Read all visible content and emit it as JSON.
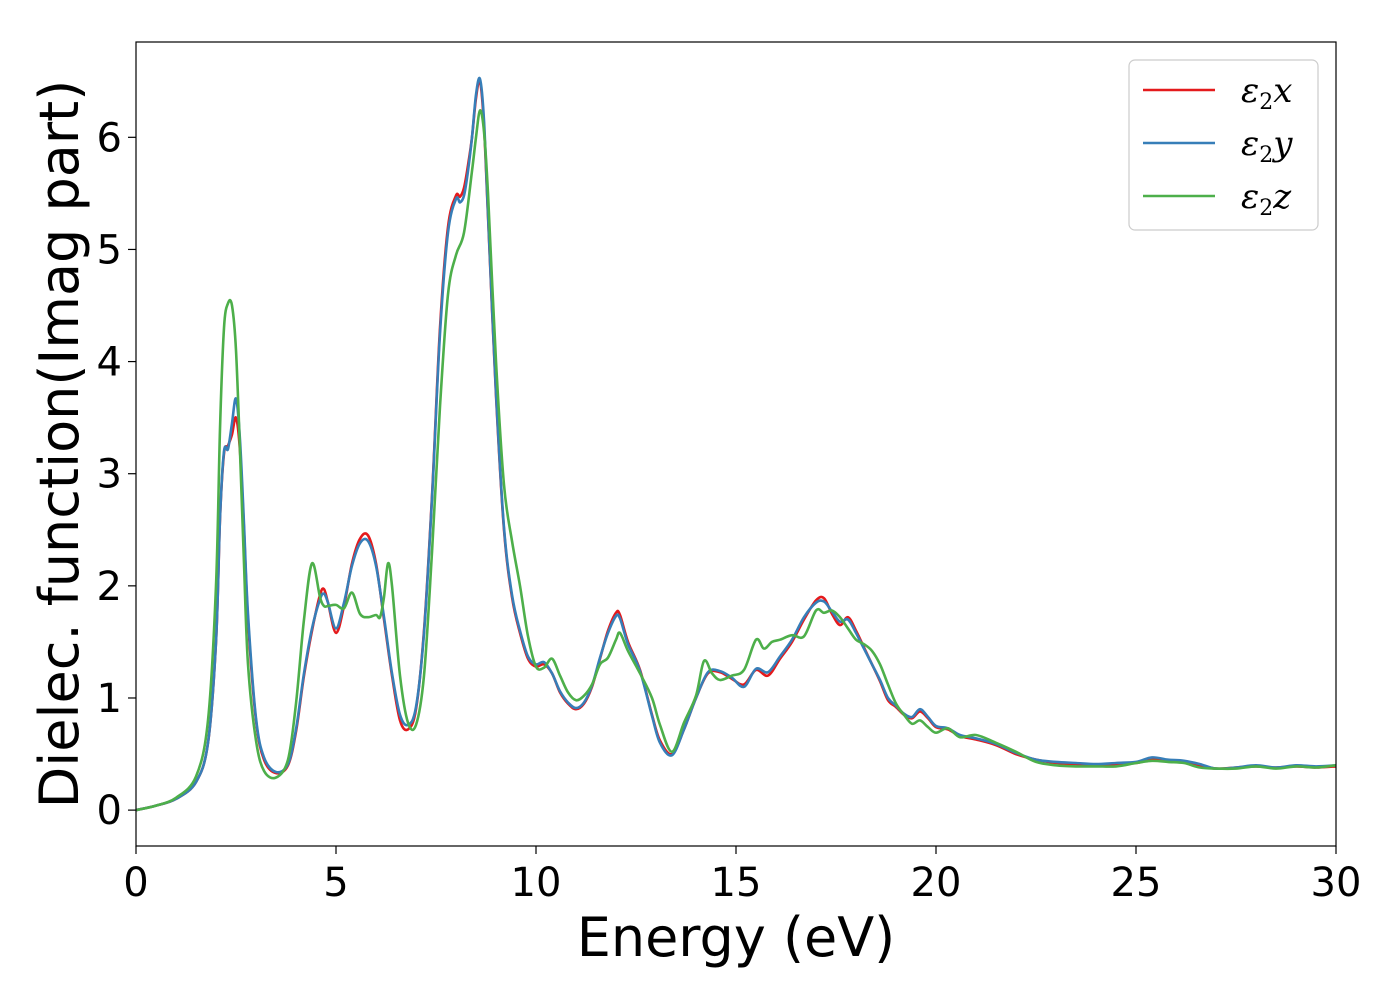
{
  "chart_data": {
    "type": "line",
    "title": "",
    "xlabel": "Energy (eV)",
    "ylabel": "Dielec. function(Imag part)",
    "xlim": [
      0,
      30
    ],
    "ylim": [
      -0.32,
      6.85
    ],
    "xticks": [
      0,
      5,
      10,
      15,
      20,
      25,
      30
    ],
    "yticks": [
      0,
      1,
      2,
      3,
      4,
      5,
      6
    ],
    "grid": false,
    "legend_position": "top-right",
    "series": [
      {
        "name": "ε₂x",
        "legend": {
          "base": "ε",
          "sub": "2",
          "suffix": "x"
        },
        "color": "#e41a1c",
        "x": [
          0,
          0.5,
          1.0,
          1.5,
          1.8,
          2.0,
          2.1,
          2.2,
          2.3,
          2.4,
          2.5,
          2.6,
          2.7,
          2.8,
          3.0,
          3.2,
          3.5,
          3.8,
          4.0,
          4.2,
          4.4,
          4.6,
          4.7,
          4.8,
          5.0,
          5.2,
          5.4,
          5.6,
          5.8,
          6.0,
          6.2,
          6.4,
          6.6,
          6.8,
          7.0,
          7.2,
          7.4,
          7.6,
          7.8,
          8.0,
          8.1,
          8.2,
          8.3,
          8.4,
          8.5,
          8.6,
          8.7,
          8.8,
          9.0,
          9.2,
          9.4,
          9.6,
          9.8,
          10.0,
          10.2,
          10.4,
          10.6,
          10.8,
          11.0,
          11.2,
          11.4,
          11.6,
          11.8,
          12.0,
          12.1,
          12.3,
          12.6,
          12.9,
          13.1,
          13.4,
          13.7,
          14.0,
          14.3,
          14.6,
          14.9,
          15.2,
          15.5,
          15.8,
          16.1,
          16.4,
          16.7,
          17.0,
          17.2,
          17.4,
          17.6,
          17.8,
          18.0,
          18.2,
          18.4,
          18.6,
          18.8,
          19.0,
          19.2,
          19.4,
          19.6,
          19.8,
          20.0,
          20.3,
          20.6,
          21.0,
          21.5,
          22.0,
          22.5,
          23.0,
          23.5,
          24.0,
          24.5,
          25.0,
          25.4,
          25.8,
          26.2,
          26.6,
          27.0,
          27.5,
          28.0,
          28.5,
          29.0,
          29.5,
          30.0
        ],
        "y": [
          0,
          0.04,
          0.1,
          0.25,
          0.6,
          1.5,
          2.6,
          3.18,
          3.25,
          3.35,
          3.5,
          3.2,
          2.5,
          1.7,
          0.8,
          0.45,
          0.33,
          0.4,
          0.7,
          1.2,
          1.6,
          1.92,
          1.97,
          1.85,
          1.58,
          1.82,
          2.2,
          2.42,
          2.45,
          2.2,
          1.7,
          1.2,
          0.8,
          0.72,
          0.9,
          1.6,
          2.8,
          4.3,
          5.2,
          5.48,
          5.47,
          5.55,
          5.75,
          6.0,
          6.35,
          6.5,
          6.1,
          5.3,
          3.7,
          2.5,
          1.9,
          1.58,
          1.35,
          1.28,
          1.3,
          1.22,
          1.05,
          0.95,
          0.9,
          0.95,
          1.1,
          1.35,
          1.6,
          1.76,
          1.74,
          1.5,
          1.25,
          0.85,
          0.62,
          0.5,
          0.72,
          1.0,
          1.22,
          1.23,
          1.17,
          1.12,
          1.25,
          1.2,
          1.35,
          1.5,
          1.7,
          1.87,
          1.89,
          1.75,
          1.65,
          1.72,
          1.6,
          1.45,
          1.3,
          1.15,
          0.98,
          0.92,
          0.85,
          0.82,
          0.88,
          0.82,
          0.74,
          0.72,
          0.66,
          0.63,
          0.58,
          0.5,
          0.45,
          0.42,
          0.41,
          0.4,
          0.41,
          0.42,
          0.45,
          0.44,
          0.43,
          0.4,
          0.37,
          0.38,
          0.39,
          0.38,
          0.39,
          0.38,
          0.39
        ]
      },
      {
        "name": "ε₂y",
        "legend": {
          "base": "ε",
          "sub": "2",
          "suffix": "y"
        },
        "color": "#377eb8",
        "x": [
          0,
          0.5,
          1.0,
          1.5,
          1.8,
          2.0,
          2.1,
          2.2,
          2.3,
          2.4,
          2.5,
          2.6,
          2.7,
          2.8,
          3.0,
          3.2,
          3.5,
          3.8,
          4.0,
          4.2,
          4.4,
          4.6,
          4.7,
          4.8,
          5.0,
          5.2,
          5.4,
          5.6,
          5.8,
          6.0,
          6.2,
          6.4,
          6.6,
          6.8,
          7.0,
          7.2,
          7.4,
          7.6,
          7.8,
          8.0,
          8.1,
          8.2,
          8.3,
          8.4,
          8.5,
          8.6,
          8.7,
          8.8,
          9.0,
          9.2,
          9.4,
          9.6,
          9.8,
          10.0,
          10.2,
          10.4,
          10.6,
          10.8,
          11.0,
          11.2,
          11.4,
          11.6,
          11.8,
          12.0,
          12.1,
          12.3,
          12.6,
          12.9,
          13.1,
          13.4,
          13.7,
          14.0,
          14.3,
          14.6,
          14.9,
          15.2,
          15.5,
          15.8,
          16.1,
          16.4,
          16.7,
          17.0,
          17.2,
          17.4,
          17.6,
          17.8,
          18.0,
          18.2,
          18.4,
          18.6,
          18.8,
          19.0,
          19.2,
          19.4,
          19.6,
          19.8,
          20.0,
          20.3,
          20.6,
          21.0,
          21.5,
          22.0,
          22.5,
          23.0,
          23.5,
          24.0,
          24.5,
          25.0,
          25.4,
          25.8,
          26.2,
          26.6,
          27.0,
          27.5,
          28.0,
          28.5,
          29.0,
          29.5,
          30.0
        ],
        "y": [
          0,
          0.04,
          0.1,
          0.25,
          0.6,
          1.5,
          2.6,
          3.2,
          3.22,
          3.45,
          3.67,
          3.3,
          2.55,
          1.75,
          0.82,
          0.47,
          0.34,
          0.41,
          0.72,
          1.22,
          1.62,
          1.88,
          1.93,
          1.85,
          1.62,
          1.85,
          2.18,
          2.38,
          2.4,
          2.18,
          1.72,
          1.22,
          0.85,
          0.76,
          0.92,
          1.58,
          2.78,
          4.25,
          5.15,
          5.45,
          5.42,
          5.48,
          5.7,
          6.0,
          6.38,
          6.52,
          6.15,
          5.32,
          3.72,
          2.52,
          1.92,
          1.6,
          1.37,
          1.3,
          1.32,
          1.22,
          1.06,
          0.96,
          0.91,
          0.96,
          1.11,
          1.36,
          1.58,
          1.73,
          1.71,
          1.48,
          1.24,
          0.84,
          0.6,
          0.49,
          0.72,
          1.0,
          1.23,
          1.24,
          1.18,
          1.1,
          1.26,
          1.23,
          1.37,
          1.52,
          1.72,
          1.85,
          1.86,
          1.77,
          1.68,
          1.7,
          1.58,
          1.44,
          1.3,
          1.16,
          1.0,
          0.93,
          0.86,
          0.83,
          0.9,
          0.83,
          0.75,
          0.73,
          0.67,
          0.64,
          0.59,
          0.51,
          0.45,
          0.43,
          0.42,
          0.41,
          0.42,
          0.43,
          0.47,
          0.45,
          0.44,
          0.41,
          0.37,
          0.38,
          0.4,
          0.38,
          0.4,
          0.39,
          0.4
        ]
      },
      {
        "name": "ε₂z",
        "legend": {
          "base": "ε",
          "sub": "2",
          "suffix": "z"
        },
        "color": "#4daf4a",
        "x": [
          0,
          0.5,
          1.0,
          1.5,
          1.8,
          2.0,
          2.1,
          2.2,
          2.3,
          2.4,
          2.5,
          2.6,
          2.7,
          2.8,
          3.0,
          3.2,
          3.5,
          3.8,
          4.0,
          4.2,
          4.4,
          4.6,
          4.7,
          4.8,
          5.0,
          5.2,
          5.4,
          5.6,
          5.8,
          6.0,
          6.1,
          6.2,
          6.3,
          6.4,
          6.6,
          6.8,
          7.0,
          7.2,
          7.4,
          7.6,
          7.8,
          8.0,
          8.2,
          8.4,
          8.5,
          8.6,
          8.7,
          8.8,
          9.0,
          9.2,
          9.4,
          9.6,
          9.8,
          10.0,
          10.2,
          10.4,
          10.6,
          10.8,
          11.0,
          11.2,
          11.4,
          11.6,
          11.8,
          12.0,
          12.1,
          12.3,
          12.6,
          12.9,
          13.1,
          13.4,
          13.7,
          14.0,
          14.2,
          14.4,
          14.6,
          14.9,
          15.2,
          15.5,
          15.7,
          15.9,
          16.1,
          16.4,
          16.7,
          17.0,
          17.2,
          17.4,
          17.6,
          17.8,
          18.0,
          18.2,
          18.4,
          18.6,
          18.8,
          19.0,
          19.2,
          19.4,
          19.6,
          19.8,
          20.0,
          20.3,
          20.6,
          21.0,
          21.5,
          22.0,
          22.5,
          23.0,
          23.5,
          24.0,
          24.5,
          25.0,
          25.4,
          25.8,
          26.2,
          26.6,
          27.0,
          27.5,
          28.0,
          28.5,
          29.0,
          29.5,
          30.0
        ],
        "y": [
          0,
          0.04,
          0.11,
          0.3,
          0.8,
          2.0,
          3.4,
          4.3,
          4.52,
          4.5,
          4.1,
          3.2,
          2.2,
          1.3,
          0.62,
          0.35,
          0.29,
          0.45,
          0.95,
          1.7,
          2.2,
          1.9,
          1.82,
          1.82,
          1.83,
          1.8,
          1.94,
          1.75,
          1.72,
          1.74,
          1.72,
          1.9,
          2.2,
          2.0,
          1.2,
          0.78,
          0.76,
          1.2,
          2.3,
          3.6,
          4.6,
          4.95,
          5.15,
          5.7,
          6.0,
          6.24,
          6.05,
          5.5,
          4.0,
          2.9,
          2.4,
          2.0,
          1.55,
          1.28,
          1.27,
          1.35,
          1.2,
          1.05,
          0.98,
          1.02,
          1.12,
          1.3,
          1.36,
          1.52,
          1.58,
          1.42,
          1.22,
          1.0,
          0.76,
          0.52,
          0.78,
          1.02,
          1.33,
          1.22,
          1.16,
          1.2,
          1.25,
          1.52,
          1.44,
          1.5,
          1.52,
          1.56,
          1.55,
          1.78,
          1.76,
          1.78,
          1.72,
          1.62,
          1.52,
          1.48,
          1.42,
          1.3,
          1.12,
          0.95,
          0.85,
          0.77,
          0.8,
          0.74,
          0.69,
          0.73,
          0.65,
          0.67,
          0.6,
          0.52,
          0.43,
          0.4,
          0.39,
          0.39,
          0.39,
          0.42,
          0.44,
          0.43,
          0.42,
          0.38,
          0.37,
          0.37,
          0.39,
          0.37,
          0.39,
          0.38,
          0.4
        ]
      }
    ]
  }
}
